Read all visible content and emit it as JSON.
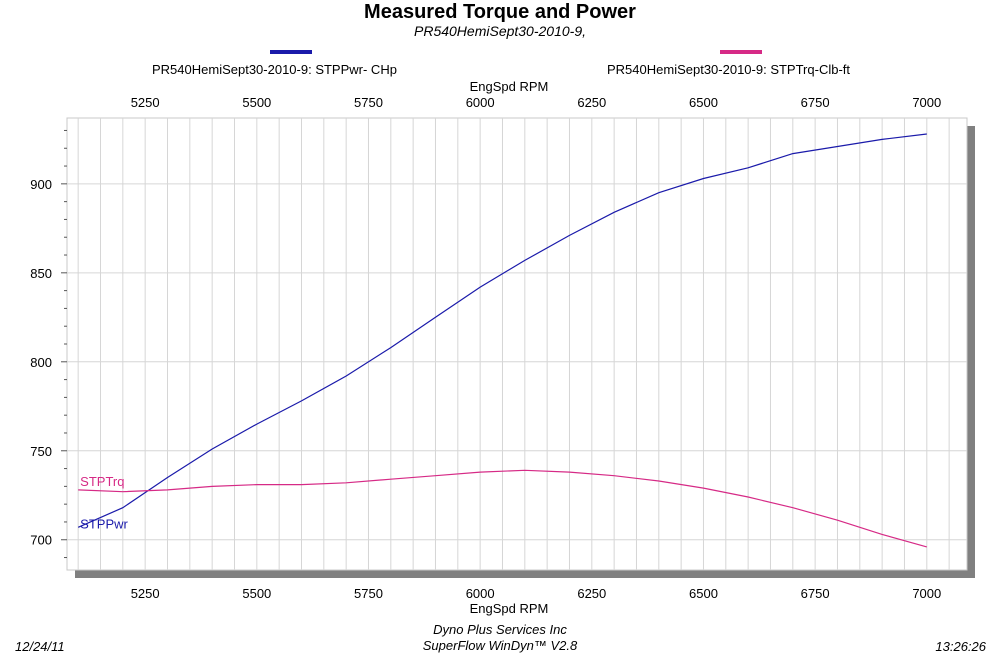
{
  "header": {
    "title": "Measured Torque and Power",
    "subtitle": "PR540HemiSept30-2010-9,"
  },
  "footer": {
    "date": "12/24/11",
    "company": "Dyno Plus Services Inc",
    "software": "SuperFlow WinDyn™ V2.8",
    "time": "13:26:26"
  },
  "colors": {
    "power": "#1a1aaa",
    "torque": "#d62a86",
    "grid": "#d6d6d6",
    "frame_shadow": "#808080"
  },
  "chart_data": {
    "type": "line",
    "title": "Measured Torque and Power",
    "subtitle": "PR540HemiSept30-2010-9,",
    "xlabel_top": "EngSpd  RPM",
    "xlabel": "EngSpd  RPM",
    "xlim": [
      5075,
      7090
    ],
    "ylim": [
      683,
      937
    ],
    "x_ticks": [
      5250,
      5500,
      5750,
      6000,
      6250,
      6500,
      6750,
      7000
    ],
    "y_ticks": [
      700,
      750,
      800,
      850,
      900
    ],
    "grid": true,
    "legend_placement": "top",
    "series": [
      {
        "name": "PR540HemiSept30-2010-9: STPPwr- CHp",
        "label": "STPPwr",
        "color": "#1a1aaa",
        "x": [
          5100,
          5200,
          5300,
          5400,
          5500,
          5600,
          5700,
          5800,
          5900,
          6000,
          6100,
          6200,
          6300,
          6400,
          6500,
          6600,
          6700,
          6800,
          6900,
          7000
        ],
        "values": [
          707,
          718,
          735,
          751,
          765,
          778,
          792,
          808,
          825,
          842,
          857,
          871,
          884,
          895,
          903,
          909,
          917,
          921,
          925,
          928
        ]
      },
      {
        "name": "PR540HemiSept30-2010-9: STPTrq-Clb-ft",
        "label": "STPTrq",
        "color": "#d62a86",
        "x": [
          5100,
          5200,
          5300,
          5400,
          5500,
          5600,
          5700,
          5800,
          5900,
          6000,
          6100,
          6200,
          6300,
          6400,
          6500,
          6600,
          6700,
          6800,
          6900,
          7000
        ],
        "values": [
          728,
          727,
          728,
          730,
          731,
          731,
          732,
          734,
          736,
          738,
          739,
          738,
          736,
          733,
          729,
          724,
          718,
          711,
          703,
          696
        ]
      }
    ]
  }
}
